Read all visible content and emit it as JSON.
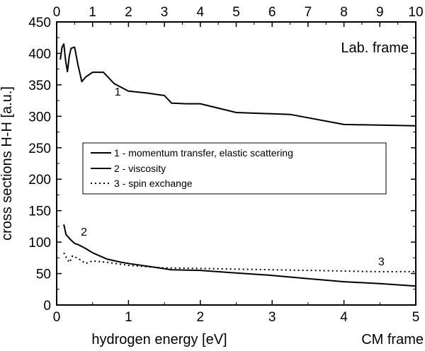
{
  "chart_data": {
    "type": "line",
    "frame_left": "Lab. frame",
    "frame_right": "CM frame",
    "xlabel": "hydrogen energy [eV]",
    "ylabel": "cross sections H-H  [a.u.]",
    "x_bottom": {
      "lim": [
        0,
        5
      ],
      "ticks": [
        0,
        1,
        2,
        3,
        4,
        5
      ]
    },
    "x_top": {
      "lim": [
        0,
        10
      ],
      "ticks": [
        0,
        1,
        2,
        3,
        4,
        5,
        6,
        7,
        8,
        9,
        10
      ]
    },
    "ylim": [
      0,
      450
    ],
    "yticks": [
      0,
      50,
      100,
      150,
      200,
      250,
      300,
      350,
      400,
      450
    ],
    "series": [
      {
        "id": "1",
        "name": "1 - momentum transfer, elastic scattering",
        "style": "solid",
        "curve_label": "1",
        "label_at": [
          1.7,
          333
        ],
        "x_axis": "top",
        "points": [
          [
            0.1,
            390
          ],
          [
            0.15,
            410
          ],
          [
            0.2,
            415
          ],
          [
            0.25,
            388
          ],
          [
            0.3,
            371
          ],
          [
            0.35,
            395
          ],
          [
            0.4,
            408
          ],
          [
            0.5,
            410
          ],
          [
            0.6,
            380
          ],
          [
            0.7,
            355
          ],
          [
            0.8,
            362
          ],
          [
            1.0,
            370
          ],
          [
            1.3,
            370
          ],
          [
            1.6,
            352
          ],
          [
            2.0,
            340
          ],
          [
            2.5,
            337
          ],
          [
            3.0,
            333
          ],
          [
            3.2,
            321
          ],
          [
            3.6,
            320
          ],
          [
            4.0,
            320
          ],
          [
            5.0,
            306
          ],
          [
            6.5,
            303
          ],
          [
            8.0,
            287
          ],
          [
            10.0,
            285
          ]
        ]
      },
      {
        "id": "2",
        "name": "2 - viscosity",
        "style": "solid",
        "curve_label": "2",
        "label_at": [
          0.38,
          110
        ],
        "x_axis": "bottom",
        "points": [
          [
            0.1,
            128
          ],
          [
            0.13,
            112
          ],
          [
            0.2,
            103
          ],
          [
            0.25,
            98
          ],
          [
            0.3,
            96
          ],
          [
            0.4,
            90
          ],
          [
            0.5,
            83
          ],
          [
            0.7,
            73
          ],
          [
            0.9,
            68
          ],
          [
            1.0,
            66
          ],
          [
            1.3,
            61
          ],
          [
            1.6,
            56
          ],
          [
            2.0,
            55
          ],
          [
            2.5,
            51
          ],
          [
            3.0,
            47
          ],
          [
            3.5,
            42
          ],
          [
            4.0,
            37
          ],
          [
            4.5,
            34
          ],
          [
            5.0,
            30
          ]
        ]
      },
      {
        "id": "3",
        "name": "3 - spin exchange",
        "style": "dotted",
        "curve_label": "3",
        "label_at": [
          4.52,
          63
        ],
        "x_axis": "bottom",
        "points": [
          [
            0.1,
            83
          ],
          [
            0.15,
            72
          ],
          [
            0.18,
            68
          ],
          [
            0.22,
            78
          ],
          [
            0.3,
            74
          ],
          [
            0.4,
            66
          ],
          [
            0.5,
            70
          ],
          [
            0.7,
            68
          ],
          [
            1.0,
            63
          ],
          [
            1.5,
            59
          ],
          [
            2.0,
            58
          ],
          [
            2.5,
            57
          ],
          [
            3.0,
            56
          ],
          [
            3.5,
            55
          ],
          [
            4.0,
            54
          ],
          [
            4.5,
            53
          ],
          [
            5.0,
            53
          ]
        ]
      }
    ]
  }
}
